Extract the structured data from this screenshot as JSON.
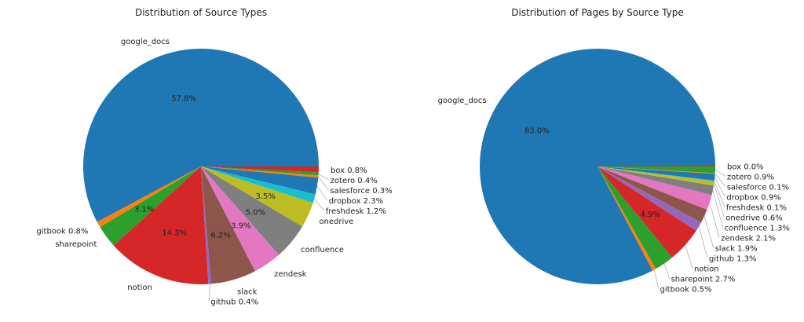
{
  "chart_data": [
    {
      "type": "pie",
      "title": "Distribution of Source Types",
      "labels": [
        "google_docs",
        "gitbook",
        "sharepoint",
        "notion",
        "github",
        "slack",
        "zendesk",
        "confluence",
        "onedrive",
        "freshdesk",
        "dropbox",
        "salesforce",
        "zotero",
        "box"
      ],
      "values": [
        57.8,
        0.8,
        3.1,
        14.3,
        0.4,
        6.2,
        3.9,
        5.0,
        3.5,
        1.2,
        2.3,
        0.3,
        0.4,
        0.8
      ],
      "start_angle": 0,
      "direction": "counterclockwise"
    },
    {
      "type": "pie",
      "title": "Distribution of Pages by Source Type",
      "labels": [
        "google_docs",
        "gitbook",
        "sharepoint",
        "notion",
        "github",
        "slack",
        "zendesk",
        "confluence",
        "onedrive",
        "freshdesk",
        "dropbox",
        "salesforce",
        "zotero",
        "box"
      ],
      "values": [
        83.0,
        0.5,
        2.7,
        4.9,
        1.3,
        1.9,
        2.1,
        1.3,
        0.6,
        0.1,
        0.9,
        0.1,
        0.9,
        0.0
      ],
      "start_angle": 0,
      "direction": "counterclockwise"
    }
  ],
  "colors": [
    "#1f77b4",
    "#ff7f0e",
    "#2ca02c",
    "#d62728",
    "#9467bd",
    "#8c564b",
    "#e377c2",
    "#7f7f7f",
    "#bcbd22",
    "#17becf"
  ]
}
